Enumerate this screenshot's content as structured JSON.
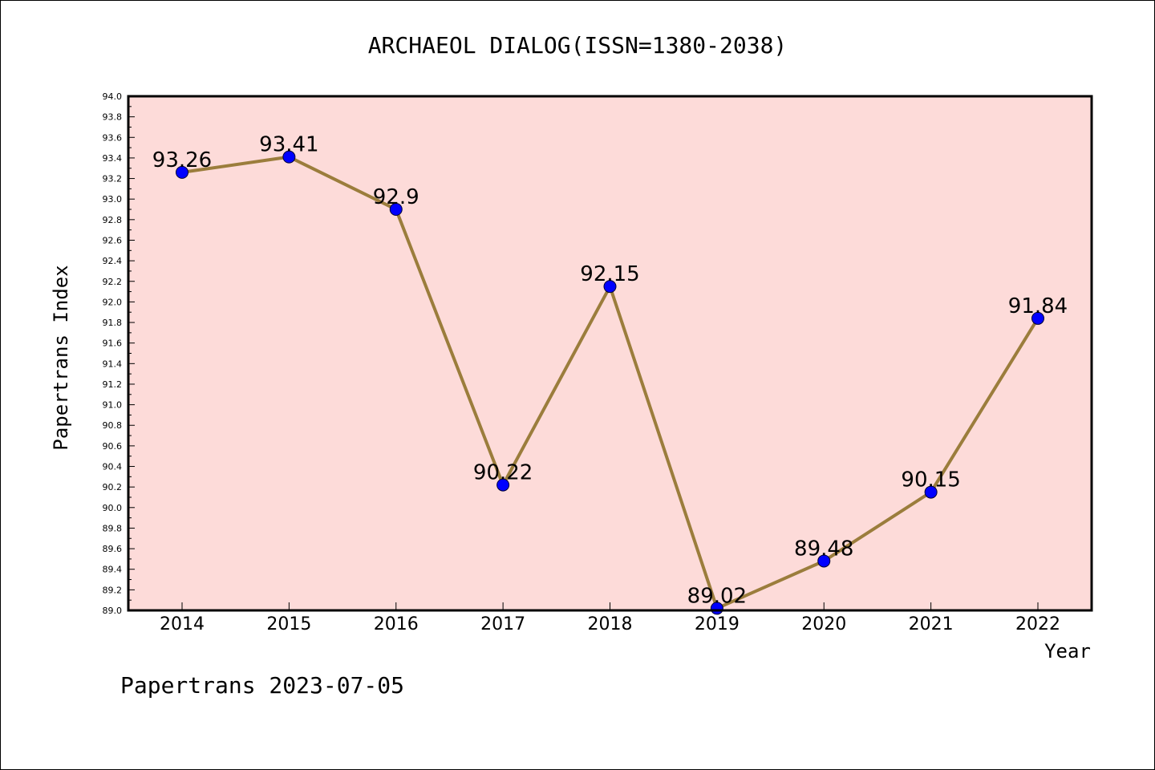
{
  "chart_data": {
    "type": "line",
    "title": "ARCHAEOL DIALOG(ISSN=1380-2038)",
    "xlabel": "Year",
    "ylabel": "Papertrans Index",
    "categories": [
      "2014",
      "2015",
      "2016",
      "2017",
      "2018",
      "2019",
      "2020",
      "2021",
      "2022"
    ],
    "values": [
      93.26,
      93.41,
      92.9,
      90.22,
      92.15,
      89.02,
      89.48,
      90.15,
      91.84
    ],
    "data_labels": [
      "93.26",
      "93.41",
      "92.9",
      "90.22",
      "92.15",
      "89.02",
      "89.48",
      "90.15",
      "91.84"
    ],
    "ylim": [
      89.0,
      94.0
    ],
    "yticks": [
      "89.0",
      "89.2",
      "89.4",
      "89.6",
      "89.8",
      "90.0",
      "90.2",
      "90.4",
      "90.6",
      "90.8",
      "91.0",
      "91.2",
      "91.4",
      "91.6",
      "91.8",
      "92.0",
      "92.2",
      "92.4",
      "92.6",
      "92.8",
      "93.0",
      "93.2",
      "93.4",
      "93.6",
      "93.8",
      "94.0"
    ],
    "grid": false,
    "colors": {
      "plot_background": "#fddbd9",
      "line": "#9b7d3c",
      "marker": "#0000ff"
    },
    "footer": "Papertrans 2023-07-05"
  }
}
